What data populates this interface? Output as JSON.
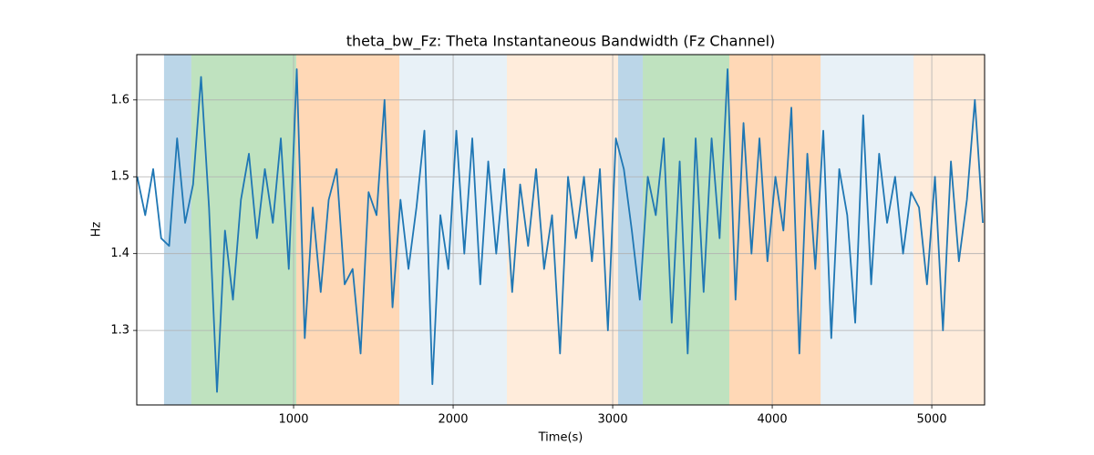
{
  "chart_data": {
    "type": "line",
    "title": "theta_bw_Fz: Theta Instantaneous Bandwidth (Fz Channel)",
    "xlabel": "Time(s)",
    "ylabel": "Hz",
    "xlim": [
      17,
      5331
    ],
    "ylim": [
      1.203,
      1.659
    ],
    "xticks": [
      1000,
      2000,
      3000,
      4000,
      5000
    ],
    "yticks": [
      1.3,
      1.4,
      1.5,
      1.6
    ],
    "grid": true,
    "spans": [
      {
        "start": 188,
        "end": 359,
        "color": "#1f77b4",
        "opacity": 0.3
      },
      {
        "start": 359,
        "end": 1017,
        "color": "#2ca02c",
        "opacity": 0.3
      },
      {
        "start": 1017,
        "end": 1663,
        "color": "#ff7f0e",
        "opacity": 0.3
      },
      {
        "start": 1663,
        "end": 2337,
        "color": "#1f77b4",
        "opacity": 0.1
      },
      {
        "start": 2337,
        "end": 3034,
        "color": "#ff7f0e",
        "opacity": 0.15
      },
      {
        "start": 3034,
        "end": 3189,
        "color": "#1f77b4",
        "opacity": 0.3
      },
      {
        "start": 3189,
        "end": 3731,
        "color": "#2ca02c",
        "opacity": 0.3
      },
      {
        "start": 3731,
        "end": 4303,
        "color": "#ff7f0e",
        "opacity": 0.3
      },
      {
        "start": 4303,
        "end": 4886,
        "color": "#1f77b4",
        "opacity": 0.1
      },
      {
        "start": 4886,
        "end": 5331,
        "color": "#ff7f0e",
        "opacity": 0.15
      }
    ],
    "x": [
      20,
      70,
      120,
      170,
      220,
      270,
      320,
      370,
      420,
      470,
      520,
      570,
      620,
      670,
      720,
      770,
      820,
      870,
      920,
      970,
      1020,
      1070,
      1120,
      1170,
      1220,
      1270,
      1320,
      1370,
      1420,
      1470,
      1520,
      1570,
      1620,
      1670,
      1720,
      1770,
      1820,
      1870,
      1920,
      1970,
      2020,
      2070,
      2120,
      2170,
      2220,
      2270,
      2320,
      2370,
      2420,
      2470,
      2520,
      2570,
      2620,
      2670,
      2720,
      2770,
      2820,
      2870,
      2920,
      2970,
      3020,
      3070,
      3120,
      3170,
      3220,
      3270,
      3320,
      3370,
      3420,
      3470,
      3520,
      3570,
      3620,
      3670,
      3720,
      3770,
      3820,
      3870,
      3920,
      3970,
      4020,
      4070,
      4120,
      4170,
      4220,
      4270,
      4320,
      4370,
      4420,
      4470,
      4520,
      4570,
      4620,
      4670,
      4720,
      4770,
      4820,
      4870,
      4920,
      4970,
      5020,
      5070,
      5120,
      5170,
      5220,
      5270,
      5320
    ],
    "series": [
      {
        "color": "#1f77b4",
        "values": [
          1.5,
          1.45,
          1.51,
          1.42,
          1.41,
          1.55,
          1.44,
          1.49,
          1.63,
          1.46,
          1.22,
          1.43,
          1.34,
          1.47,
          1.53,
          1.42,
          1.51,
          1.44,
          1.55,
          1.38,
          1.64,
          1.29,
          1.46,
          1.35,
          1.47,
          1.51,
          1.36,
          1.38,
          1.27,
          1.48,
          1.45,
          1.6,
          1.33,
          1.47,
          1.38,
          1.46,
          1.56,
          1.23,
          1.45,
          1.38,
          1.56,
          1.4,
          1.55,
          1.36,
          1.52,
          1.4,
          1.51,
          1.35,
          1.49,
          1.41,
          1.51,
          1.38,
          1.45,
          1.27,
          1.5,
          1.42,
          1.5,
          1.39,
          1.51,
          1.3,
          1.55,
          1.51,
          1.43,
          1.34,
          1.5,
          1.45,
          1.55,
          1.31,
          1.52,
          1.27,
          1.55,
          1.35,
          1.55,
          1.42,
          1.64,
          1.34,
          1.57,
          1.4,
          1.55,
          1.39,
          1.5,
          1.43,
          1.59,
          1.27,
          1.53,
          1.38,
          1.56,
          1.29,
          1.51,
          1.45,
          1.31,
          1.58,
          1.36,
          1.53,
          1.44,
          1.5,
          1.4,
          1.48,
          1.46,
          1.36,
          1.5,
          1.3,
          1.52,
          1.39,
          1.47,
          1.6,
          1.44
        ]
      }
    ]
  }
}
